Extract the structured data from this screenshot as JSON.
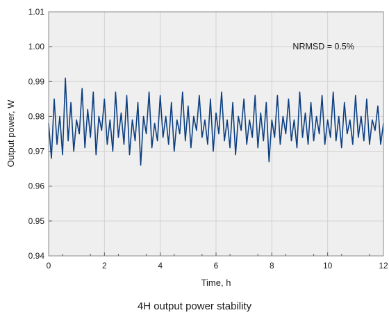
{
  "chart_data": {
    "type": "line",
    "title": "4H output power stability",
    "xlabel": "Time, h",
    "ylabel": "Output power, W",
    "xlim": [
      0,
      12
    ],
    "ylim": [
      0.94,
      1.01
    ],
    "x_ticks": [
      "0",
      "2",
      "4",
      "6",
      "8",
      "10",
      "12"
    ],
    "y_ticks": [
      "0.94",
      "0.95",
      "0.96",
      "0.97",
      "0.98",
      "0.99",
      "1.00",
      "1.01"
    ],
    "grid": true,
    "annotation": "NRMSD = 0.5%",
    "series": [
      {
        "color": "#0d3f80",
        "x": [
          0,
          0.1,
          0.2,
          0.3,
          0.4,
          0.5,
          0.6,
          0.7,
          0.8,
          0.9,
          1,
          1.1,
          1.2,
          1.3,
          1.4,
          1.5,
          1.6,
          1.7,
          1.8,
          1.9,
          2,
          2.1,
          2.2,
          2.3,
          2.4,
          2.5,
          2.6,
          2.7,
          2.8,
          2.9,
          3,
          3.1,
          3.2,
          3.3,
          3.4,
          3.5,
          3.6,
          3.7,
          3.8,
          3.9,
          4,
          4.1,
          4.2,
          4.3,
          4.4,
          4.5,
          4.6,
          4.7,
          4.8,
          4.9,
          5,
          5.1,
          5.2,
          5.3,
          5.4,
          5.5,
          5.6,
          5.7,
          5.8,
          5.9,
          6,
          6.1,
          6.2,
          6.3,
          6.4,
          6.5,
          6.6,
          6.7,
          6.8,
          6.9,
          7,
          7.1,
          7.2,
          7.3,
          7.4,
          7.5,
          7.6,
          7.7,
          7.8,
          7.9,
          8,
          8.1,
          8.2,
          8.3,
          8.4,
          8.5,
          8.6,
          8.7,
          8.8,
          8.9,
          9,
          9.1,
          9.2,
          9.3,
          9.4,
          9.5,
          9.6,
          9.7,
          9.8,
          9.9,
          10,
          10.1,
          10.2,
          10.3,
          10.4,
          10.5,
          10.6,
          10.7,
          10.8,
          10.9,
          11,
          11.1,
          11.2,
          11.3,
          11.4,
          11.5,
          11.6,
          11.7,
          11.8,
          11.9,
          12
        ],
        "y": [
          0.978,
          0.968,
          0.985,
          0.972,
          0.98,
          0.969,
          0.991,
          0.973,
          0.984,
          0.97,
          0.979,
          0.975,
          0.988,
          0.971,
          0.982,
          0.974,
          0.987,
          0.969,
          0.98,
          0.976,
          0.985,
          0.972,
          0.979,
          0.97,
          0.987,
          0.974,
          0.981,
          0.972,
          0.986,
          0.969,
          0.979,
          0.973,
          0.984,
          0.966,
          0.98,
          0.975,
          0.987,
          0.971,
          0.978,
          0.973,
          0.986,
          0.974,
          0.98,
          0.972,
          0.984,
          0.97,
          0.979,
          0.975,
          0.987,
          0.973,
          0.983,
          0.971,
          0.98,
          0.976,
          0.986,
          0.974,
          0.979,
          0.972,
          0.985,
          0.97,
          0.981,
          0.975,
          0.987,
          0.973,
          0.979,
          0.971,
          0.984,
          0.969,
          0.98,
          0.976,
          0.985,
          0.972,
          0.979,
          0.974,
          0.986,
          0.971,
          0.981,
          0.973,
          0.984,
          0.967,
          0.979,
          0.974,
          0.986,
          0.972,
          0.98,
          0.975,
          0.985,
          0.973,
          0.979,
          0.971,
          0.987,
          0.974,
          0.981,
          0.972,
          0.984,
          0.973,
          0.98,
          0.975,
          0.986,
          0.972,
          0.979,
          0.974,
          0.987,
          0.973,
          0.98,
          0.971,
          0.984,
          0.975,
          0.979,
          0.972,
          0.986,
          0.974,
          0.98,
          0.973,
          0.985,
          0.972,
          0.979,
          0.976,
          0.983,
          0.972,
          0.978
        ]
      }
    ]
  }
}
